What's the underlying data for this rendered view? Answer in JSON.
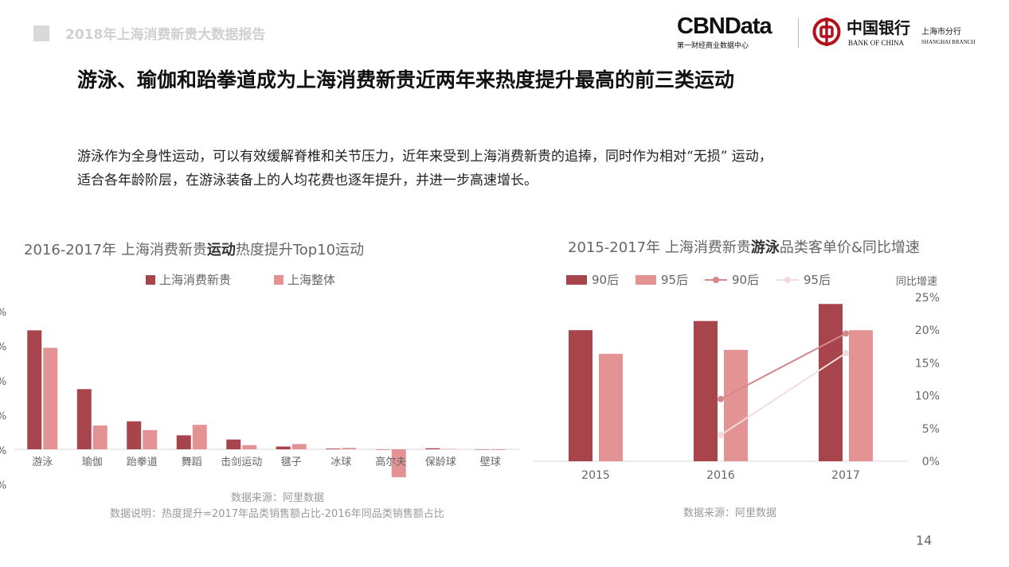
{
  "header": {
    "report_title": "2018年上海消费新贵大数据报告",
    "cbn_name": "CBNData",
    "cbn_sub": "第一财经商业数据中心",
    "boc_cn": "中国银行",
    "boc_en": "BANK OF CHINA",
    "boc_branch_cn": "上海市分行",
    "boc_branch_en": "SHANGHAI BRANCH"
  },
  "title": "游泳、瑜伽和跆拳道成为上海消费新贵近两年来热度提升最高的前三类运动",
  "description": [
    "游泳作为全身性运动，可以有效缓解脊椎和关节压力，近年来受到上海消费新贵的追捧，同时作为相对“无损” 运动，",
    "适合各年龄阶层，在游泳装备上的人均花费也逐年提升，并进一步高速增长。"
  ],
  "colors": {
    "dark": "#a8444b",
    "light": "#e49395",
    "line90": "#d4878d",
    "line95": "#f4dcdd",
    "axis": "#d9d9d9"
  },
  "chart1_title": {
    "prefix": "2016-2017年 上海消费新贵",
    "bold": "运动",
    "suffix": "热度提升Top10运动"
  },
  "chart1_source": "数据来源：阿里数据",
  "chart1_note": "数据说明：热度提升=2017年品类销售额占比-2016年同品类销售额占比",
  "chart2_title": {
    "prefix": "2015-2017年 上海消费新贵",
    "bold": "游泳",
    "suffix": "品类客单价&同比增速"
  },
  "chart2_source": "数据来源：阿里数据",
  "chart2_axis_name": "同比增速",
  "page_number": "14",
  "chart_data": [
    {
      "type": "bar",
      "categories": [
        "游泳",
        "瑜伽",
        "跆拳道",
        "舞蹈",
        "击剑运动",
        "毽子",
        "冰球",
        "高尔夫",
        "保龄球",
        "壁球"
      ],
      "series": [
        {
          "name": "上海消费新贵",
          "values": [
            3.4,
            1.72,
            0.8,
            0.4,
            0.28,
            0.08,
            0.02,
            0.0,
            0.03,
            0.0
          ]
        },
        {
          "name": "上海整体",
          "values": [
            2.9,
            0.68,
            0.55,
            0.7,
            0.12,
            0.15,
            0.04,
            -0.8,
            0.01,
            -0.02
          ]
        }
      ],
      "y_tick_labels": [
        "%",
        "%",
        "%",
        "%",
        "%",
        "%"
      ],
      "legend": "top",
      "grid": false
    },
    {
      "type": "bar",
      "categories": [
        "2015",
        "2016",
        "2017"
      ],
      "series": [
        {
          "name": "90后",
          "type": "bar",
          "values": [
            100,
            107,
            120
          ]
        },
        {
          "name": "95后",
          "type": "bar",
          "values": [
            82,
            85,
            100
          ]
        },
        {
          "name": "90后",
          "type": "line",
          "axis": "right",
          "values": [
            null,
            9.5,
            19.5
          ]
        },
        {
          "name": "95后",
          "type": "line",
          "axis": "right",
          "values": [
            null,
            4.0,
            16.5
          ]
        }
      ],
      "y2_ticks": [
        "0%",
        "5%",
        "10%",
        "15%",
        "20%",
        "25%"
      ],
      "y2_range": [
        0,
        25
      ],
      "y_range": [
        0,
        125
      ],
      "legend": "top",
      "grid": false
    }
  ]
}
